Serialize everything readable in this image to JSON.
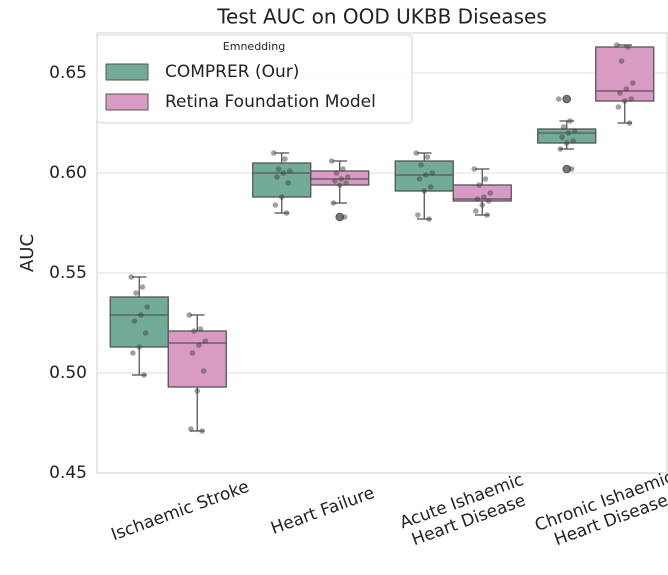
{
  "chart_data": {
    "type": "box",
    "title": "Test AUC on OOD UKBB Diseases",
    "y_label": "AUC",
    "categories": [
      [
        "Ischaemic Stroke"
      ],
      [
        "Heart Failure"
      ],
      [
        "Acute Ishaemic",
        "Heart Disease"
      ],
      [
        "Chronic Ishaemic",
        "Heart Disease"
      ]
    ],
    "ylim": [
      0.45,
      0.67
    ],
    "yticks": [
      0.45,
      {
        "value": 0.5,
        "label": "0.50"
      },
      0.55,
      {
        "value": 0.6,
        "label": "0.60"
      },
      0.65
    ],
    "grid": true,
    "legend": {
      "title": "Emnedding",
      "corner": "upper-left"
    },
    "series": [
      {
        "name": "COMPRER (Our)",
        "color": "#72ab97",
        "boxes": [
          {
            "low": 0.499,
            "q1": 0.513,
            "median": 0.529,
            "q3": 0.538,
            "high": 0.548,
            "outliers": [],
            "points": [
              0.548,
              0.543,
              0.54,
              0.533,
              0.529,
              0.526,
              0.52,
              0.513,
              0.51,
              0.499
            ]
          },
          {
            "low": 0.58,
            "q1": 0.588,
            "median": 0.6,
            "q3": 0.605,
            "high": 0.61,
            "outliers": [],
            "points": [
              0.61,
              0.607,
              0.602,
              0.601,
              0.6,
              0.598,
              0.595,
              0.588,
              0.584,
              0.58
            ]
          },
          {
            "low": 0.577,
            "q1": 0.591,
            "median": 0.599,
            "q3": 0.606,
            "high": 0.61,
            "outliers": [],
            "points": [
              0.61,
              0.608,
              0.604,
              0.6,
              0.599,
              0.597,
              0.593,
              0.591,
              0.579,
              0.577
            ]
          },
          {
            "low": 0.612,
            "q1": 0.615,
            "median": 0.62,
            "q3": 0.622,
            "high": 0.626,
            "outliers": [
              0.602,
              0.637
            ],
            "points": [
              0.637,
              0.626,
              0.623,
              0.621,
              0.62,
              0.618,
              0.616,
              0.615,
              0.612,
              0.602
            ]
          }
        ]
      },
      {
        "name": "Retina Foundation Model",
        "color": "#d99bc4",
        "boxes": [
          {
            "low": 0.471,
            "q1": 0.493,
            "median": 0.515,
            "q3": 0.521,
            "high": 0.529,
            "outliers": [],
            "points": [
              0.529,
              0.522,
              0.521,
              0.516,
              0.514,
              0.51,
              0.501,
              0.491,
              0.472,
              0.471
            ]
          },
          {
            "low": 0.585,
            "q1": 0.594,
            "median": 0.597,
            "q3": 0.601,
            "high": 0.606,
            "outliers": [
              0.578
            ],
            "points": [
              0.606,
              0.602,
              0.6,
              0.598,
              0.597,
              0.596,
              0.595,
              0.594,
              0.585,
              0.578
            ]
          },
          {
            "low": 0.579,
            "q1": 0.586,
            "median": 0.587,
            "q3": 0.594,
            "high": 0.602,
            "outliers": [],
            "points": [
              0.602,
              0.597,
              0.594,
              0.59,
              0.588,
              0.587,
              0.586,
              0.584,
              0.581,
              0.579
            ]
          },
          {
            "low": 0.625,
            "q1": 0.636,
            "median": 0.641,
            "q3": 0.663,
            "high": 0.664,
            "outliers": [],
            "points": [
              0.664,
              0.663,
              0.656,
              0.645,
              0.642,
              0.64,
              0.637,
              0.636,
              0.633,
              0.625
            ]
          }
        ]
      }
    ]
  }
}
